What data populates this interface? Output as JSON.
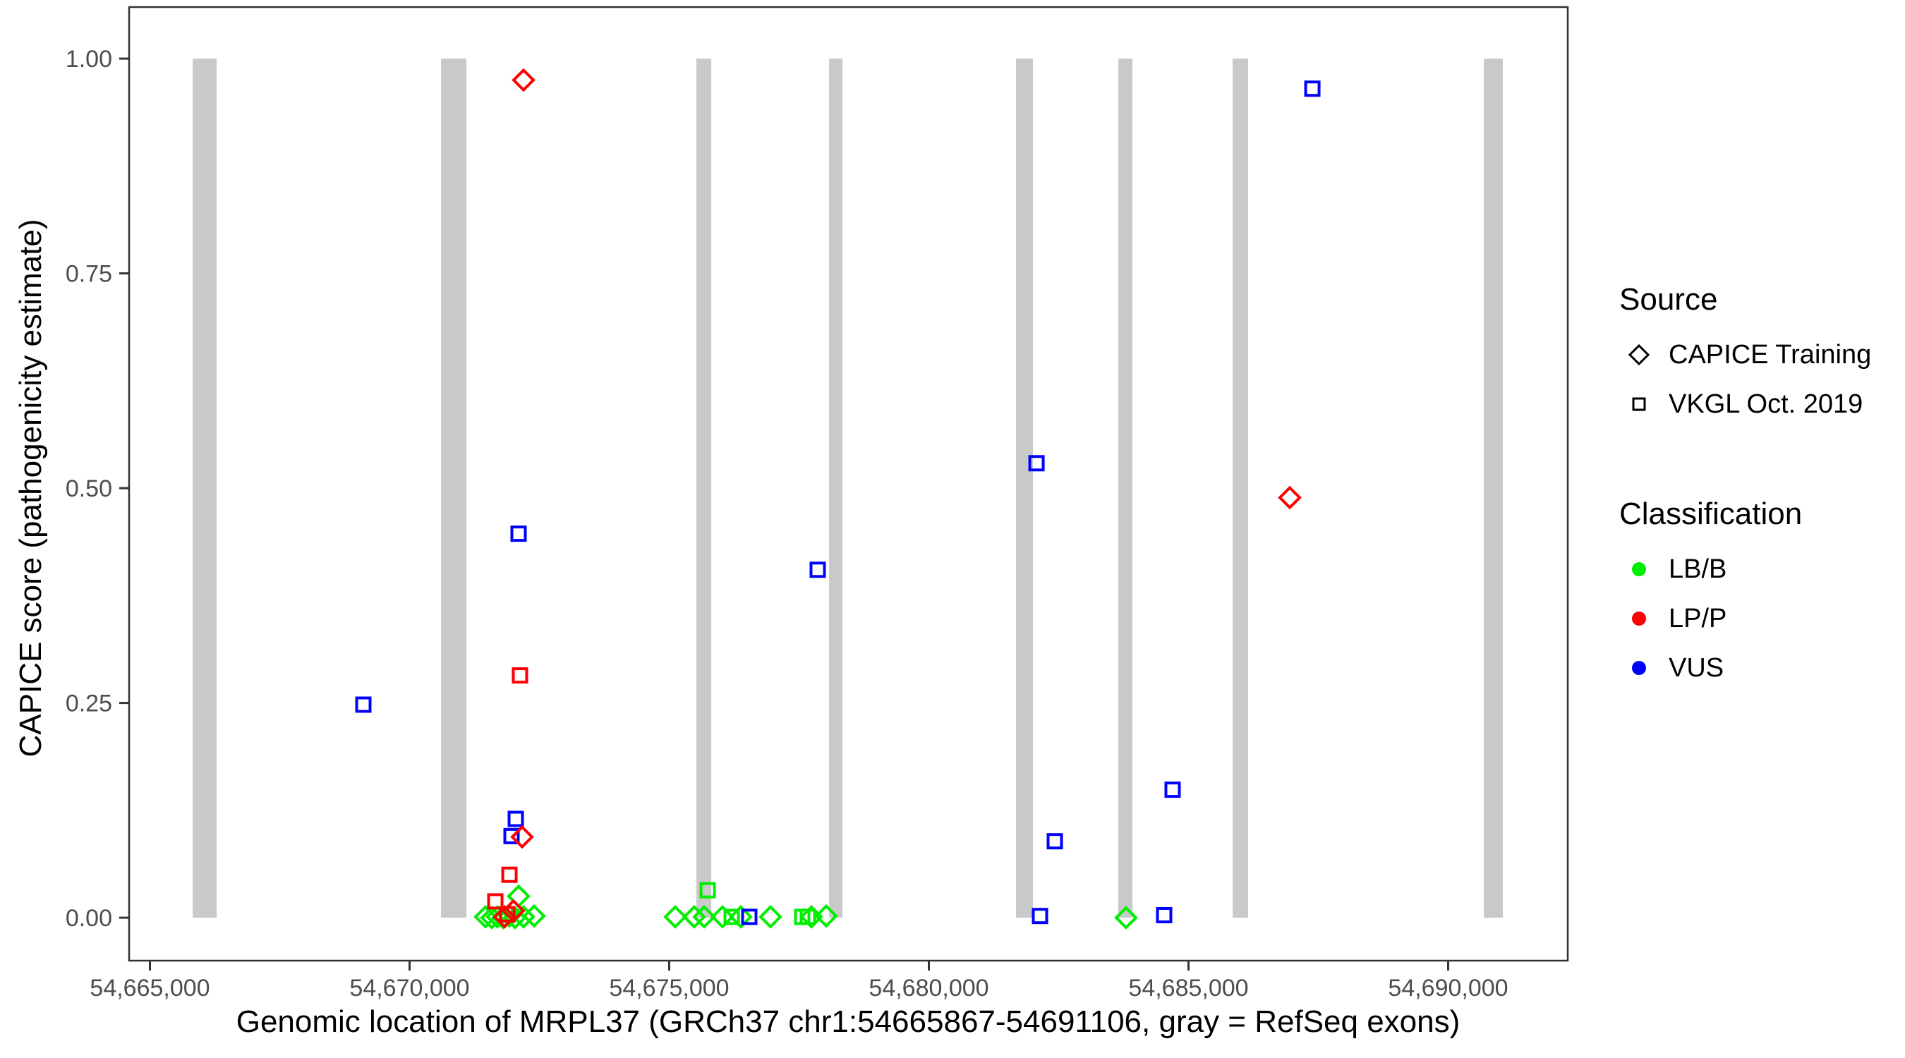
{
  "axes": {
    "x": {
      "title": "Genomic location of MRPL37 (GRCh37 chr1:54665867-54691106, gray = RefSeq exons)",
      "ticks": [
        {
          "value": 54665000,
          "label": "54,665,000"
        },
        {
          "value": 54670000,
          "label": "54,670,000"
        },
        {
          "value": 54675000,
          "label": "54,675,000"
        },
        {
          "value": 54680000,
          "label": "54,680,000"
        },
        {
          "value": 54685000,
          "label": "54,685,000"
        },
        {
          "value": 54690000,
          "label": "54,690,000"
        }
      ]
    },
    "y": {
      "title": "CAPICE score (pathogenicity estimate)",
      "ticks": [
        {
          "value": 0.0,
          "label": "0.00"
        },
        {
          "value": 0.25,
          "label": "0.25"
        },
        {
          "value": 0.5,
          "label": "0.50"
        },
        {
          "value": 0.75,
          "label": "0.75"
        },
        {
          "value": 1.0,
          "label": "1.00"
        }
      ]
    }
  },
  "legend": {
    "source": {
      "title": "Source",
      "items": [
        {
          "label": "CAPICE Training",
          "shape": "diamond"
        },
        {
          "label": "VKGL Oct. 2019",
          "shape": "square"
        }
      ]
    },
    "classification": {
      "title": "Classification",
      "items": [
        {
          "label": "LB/B",
          "color": "#00EE00"
        },
        {
          "label": "LP/P",
          "color": "#FF0000"
        },
        {
          "label": "VUS",
          "color": "#0000FF"
        }
      ]
    }
  },
  "colors": {
    "exon": "#C9C9C9",
    "panel_border": "#333333",
    "tick_label": "#4D4D4D",
    "classification": {
      "LB/B": "#00EE00",
      "LP/P": "#FF0000",
      "VUS": "#0000FF"
    }
  },
  "chart_data": {
    "type": "scatter",
    "title": "",
    "xlabel": "Genomic location of MRPL37 (GRCh37 chr1:54665867-54691106, gray = RefSeq exons)",
    "ylabel": "CAPICE score (pathogenicity estimate)",
    "xlim": [
      54664599,
      54692303
    ],
    "ylim": [
      -0.05,
      1.06
    ],
    "grid": false,
    "legend_position": "right",
    "shape_by_source": {
      "CAPICE Training": "diamond",
      "VKGL Oct. 2019": "square"
    },
    "exons_bp": [
      [
        54665822,
        54666284
      ],
      [
        54670605,
        54671095
      ],
      [
        54675524,
        54675810
      ],
      [
        54678079,
        54678337
      ],
      [
        54681679,
        54682005
      ],
      [
        54683648,
        54683920
      ],
      [
        54685849,
        54686148
      ],
      [
        54690686,
        54691053
      ]
    ],
    "points": [
      {
        "bp": 54671461,
        "score": 0.001,
        "source": "CAPICE Training",
        "classification": "LB/B"
      },
      {
        "bp": 54671583,
        "score": 0.0,
        "source": "CAPICE Training",
        "classification": "LB/B"
      },
      {
        "bp": 54671692,
        "score": 0.001,
        "source": "CAPICE Training",
        "classification": "LB/B"
      },
      {
        "bp": 54671801,
        "score": 0.0,
        "source": "CAPICE Training",
        "classification": "LB/B"
      },
      {
        "bp": 54671923,
        "score": 0.002,
        "source": "CAPICE Training",
        "classification": "LB/B"
      },
      {
        "bp": 54672031,
        "score": 0.0,
        "source": "CAPICE Training",
        "classification": "LB/B"
      },
      {
        "bp": 54672194,
        "score": 0.001,
        "source": "CAPICE Training",
        "classification": "LB/B"
      },
      {
        "bp": 54672398,
        "score": 0.002,
        "source": "CAPICE Training",
        "classification": "LB/B"
      },
      {
        "bp": 54672099,
        "score": 0.025,
        "source": "CAPICE Training",
        "classification": "LB/B"
      },
      {
        "bp": 54675116,
        "score": 0.001,
        "source": "CAPICE Training",
        "classification": "LB/B"
      },
      {
        "bp": 54675482,
        "score": 0.001,
        "source": "CAPICE Training",
        "classification": "LB/B"
      },
      {
        "bp": 54675673,
        "score": 0.001,
        "source": "CAPICE Training",
        "classification": "LB/B"
      },
      {
        "bp": 54676026,
        "score": 0.001,
        "source": "CAPICE Training",
        "classification": "LB/B"
      },
      {
        "bp": 54676379,
        "score": 0.001,
        "source": "CAPICE Training",
        "classification": "LB/B"
      },
      {
        "bp": 54676950,
        "score": 0.001,
        "source": "CAPICE Training",
        "classification": "LB/B"
      },
      {
        "bp": 54677738,
        "score": 0.001,
        "source": "CAPICE Training",
        "classification": "LB/B"
      },
      {
        "bp": 54678023,
        "score": 0.002,
        "source": "CAPICE Training",
        "classification": "LB/B"
      },
      {
        "bp": 54683797,
        "score": 0.0,
        "source": "CAPICE Training",
        "classification": "LB/B"
      },
      {
        "bp": 54675741,
        "score": 0.032,
        "source": "VKGL Oct. 2019",
        "classification": "LB/B"
      },
      {
        "bp": 54676203,
        "score": 0.001,
        "source": "VKGL Oct. 2019",
        "classification": "LB/B"
      },
      {
        "bp": 54677561,
        "score": 0.001,
        "source": "VKGL Oct. 2019",
        "classification": "LB/B"
      },
      {
        "bp": 54677670,
        "score": 0.001,
        "source": "VKGL Oct. 2019",
        "classification": "LB/B"
      },
      {
        "bp": 54669110,
        "score": 0.248,
        "source": "VKGL Oct. 2019",
        "classification": "VUS"
      },
      {
        "bp": 54672099,
        "score": 0.447,
        "source": "VKGL Oct. 2019",
        "classification": "VUS"
      },
      {
        "bp": 54672045,
        "score": 0.115,
        "source": "VKGL Oct. 2019",
        "classification": "VUS"
      },
      {
        "bp": 54671963,
        "score": 0.095,
        "source": "VKGL Oct. 2019",
        "classification": "VUS"
      },
      {
        "bp": 54677860,
        "score": 0.405,
        "source": "VKGL Oct. 2019",
        "classification": "VUS"
      },
      {
        "bp": 54676542,
        "score": 0.001,
        "source": "VKGL Oct. 2019",
        "classification": "VUS"
      },
      {
        "bp": 54682073,
        "score": 0.529,
        "source": "VKGL Oct. 2019",
        "classification": "VUS"
      },
      {
        "bp": 54682140,
        "score": 0.002,
        "source": "VKGL Oct. 2019",
        "classification": "VUS"
      },
      {
        "bp": 54682425,
        "score": 0.089,
        "source": "VKGL Oct. 2019",
        "classification": "VUS"
      },
      {
        "bp": 54684694,
        "score": 0.149,
        "source": "VKGL Oct. 2019",
        "classification": "VUS"
      },
      {
        "bp": 54684531,
        "score": 0.003,
        "source": "VKGL Oct. 2019",
        "classification": "VUS"
      },
      {
        "bp": 54687385,
        "score": 0.965,
        "source": "VKGL Oct. 2019",
        "classification": "VUS"
      },
      {
        "bp": 54671651,
        "score": 0.019,
        "source": "VKGL Oct. 2019",
        "classification": "LP/P"
      },
      {
        "bp": 54671923,
        "score": 0.05,
        "source": "VKGL Oct. 2019",
        "classification": "LP/P"
      },
      {
        "bp": 54671882,
        "score": 0.004,
        "source": "VKGL Oct. 2019",
        "classification": "LP/P"
      },
      {
        "bp": 54672126,
        "score": 0.282,
        "source": "VKGL Oct. 2019",
        "classification": "LP/P"
      },
      {
        "bp": 54671830,
        "score": 0.001,
        "source": "CAPICE Training",
        "classification": "LP/P"
      },
      {
        "bp": 54672000,
        "score": 0.008,
        "source": "CAPICE Training",
        "classification": "LP/P"
      },
      {
        "bp": 54672167,
        "score": 0.094,
        "source": "CAPICE Training",
        "classification": "LP/P"
      },
      {
        "bp": 54672194,
        "score": 0.975,
        "source": "CAPICE Training",
        "classification": "LP/P"
      },
      {
        "bp": 54686950,
        "score": 0.489,
        "source": "CAPICE Training",
        "classification": "LP/P"
      }
    ]
  }
}
